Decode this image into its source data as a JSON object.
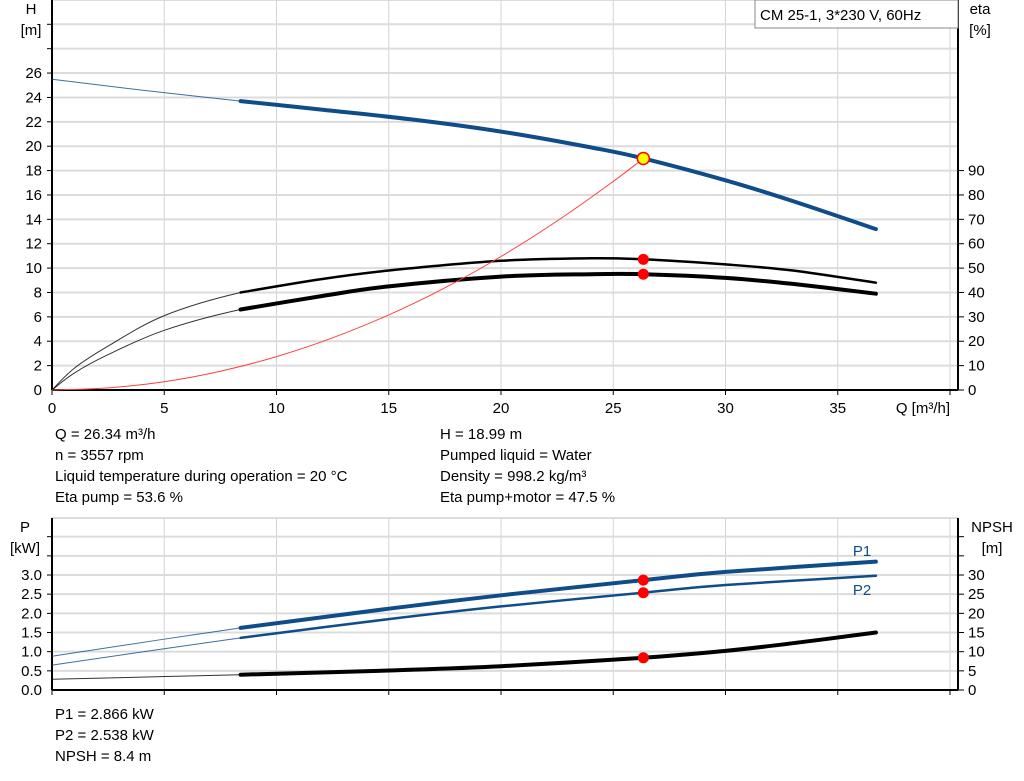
{
  "chart_data": [
    {
      "type": "line",
      "title": "CM 25-1, 3*230 V, 60Hz",
      "xlabel": "Q [m³/h]",
      "ylabel": "H",
      "ylabel_unit": "[m]",
      "y2label": "eta",
      "y2label_unit": "[%]",
      "xlim": [
        0,
        40
      ],
      "ylim": [
        0,
        32
      ],
      "y2lim": [
        0,
        160
      ],
      "grid": true,
      "x_ticks": [
        "0",
        "5",
        "10",
        "15",
        "20",
        "25",
        "30",
        "35"
      ],
      "y_ticks": [
        "0",
        "2",
        "4",
        "6",
        "8",
        "10",
        "12",
        "14",
        "16",
        "18",
        "20",
        "22",
        "24",
        "26"
      ],
      "y2_ticks": [
        "0",
        "10",
        "20",
        "30",
        "40",
        "50",
        "60",
        "70",
        "80",
        "90"
      ],
      "series": [
        {
          "key": "H",
          "axis": "left",
          "color": "#0f4c8a",
          "thin_until": 8.4,
          "x": [
            0,
            4,
            8.4,
            12,
            16,
            20,
            24,
            26.34,
            30,
            33,
            36.7
          ],
          "y": [
            25.5,
            24.6,
            23.7,
            23.0,
            22.2,
            21.2,
            19.9,
            19.0,
            17.2,
            15.5,
            13.2
          ]
        },
        {
          "key": "eta_pump",
          "axis": "right",
          "color": "#000000",
          "thin_until": 8.4,
          "x": [
            0,
            1,
            2.5,
            5,
            8.4,
            12,
            15,
            20,
            24,
            26.34,
            30,
            33,
            36.7
          ],
          "y": [
            0,
            9,
            18,
            30.5,
            40,
            45.5,
            49,
            53,
            54,
            53.6,
            51.5,
            49,
            44
          ]
        },
        {
          "key": "eta_pump_motor",
          "axis": "right",
          "color": "#000000",
          "thin_until": 8.4,
          "x": [
            0,
            1,
            2.5,
            5,
            8.4,
            12,
            15,
            20,
            24,
            26.34,
            30,
            33,
            36.7
          ],
          "y": [
            0,
            7,
            14.5,
            24.5,
            33,
            38.5,
            42.5,
            46.5,
            47.5,
            47.5,
            46,
            43.5,
            39.5
          ]
        },
        {
          "key": "system_curve",
          "axis": "left",
          "color": "#ff4040",
          "x": [
            0,
            2.5,
            5,
            7.5,
            10,
            12.5,
            15,
            17.5,
            20,
            22.5,
            25,
            26.34
          ],
          "y": [
            0,
            0.17,
            0.68,
            1.54,
            2.74,
            4.28,
            6.16,
            8.38,
            10.95,
            13.86,
            17.11,
            18.99
          ]
        }
      ],
      "duty_points": [
        {
          "key": "H",
          "axis": "left",
          "x": 26.34,
          "y": 18.99,
          "fill": "#ffff00",
          "stroke": "#ff0000"
        },
        {
          "key": "eta_pump",
          "axis": "right",
          "x": 26.34,
          "y": 53.6,
          "fill": "#ff0000"
        },
        {
          "key": "eta_pump_motor",
          "axis": "right",
          "x": 26.34,
          "y": 47.5,
          "fill": "#ff0000"
        }
      ]
    },
    {
      "type": "line",
      "ylabel": "P",
      "ylabel_unit": "[kW]",
      "y2label": "NPSH",
      "y2label_unit": "[m]",
      "xlim": [
        0,
        40
      ],
      "ylim": [
        0,
        4.5
      ],
      "y2lim": [
        0,
        45
      ],
      "grid": true,
      "y_ticks": [
        "0.0",
        "0.5",
        "1.0",
        "1.5",
        "2.0",
        "2.5",
        "3.0"
      ],
      "y2_ticks": [
        "0",
        "5",
        "10",
        "15",
        "20",
        "25",
        "30"
      ],
      "series": [
        {
          "key": "P1",
          "name": "P1",
          "axis": "left",
          "color": "#0f4c8a",
          "thin_until": 8.4,
          "heavy": true,
          "x": [
            0,
            8.4,
            15,
            20,
            26.34,
            30,
            36.7
          ],
          "y": [
            0.88,
            1.62,
            2.12,
            2.47,
            2.866,
            3.08,
            3.35
          ]
        },
        {
          "key": "P2",
          "name": "P2",
          "axis": "left",
          "color": "#0f4c8a",
          "thin_until": 8.4,
          "x": [
            0,
            8.4,
            15,
            20,
            26.34,
            30,
            36.7
          ],
          "y": [
            0.65,
            1.36,
            1.85,
            2.18,
            2.538,
            2.74,
            2.98
          ]
        },
        {
          "key": "NPSH",
          "axis": "right",
          "color": "#000000",
          "thin_until": 8.4,
          "heavy": true,
          "x": [
            0,
            8.4,
            15,
            20,
            26.34,
            30,
            33,
            36.7
          ],
          "y": [
            2.8,
            4.0,
            5.1,
            6.2,
            8.4,
            10.2,
            12.2,
            15.0
          ]
        }
      ],
      "duty_points": [
        {
          "key": "P1",
          "axis": "left",
          "x": 26.34,
          "y": 2.866,
          "fill": "#ff0000"
        },
        {
          "key": "P2",
          "axis": "left",
          "x": 26.34,
          "y": 2.538,
          "fill": "#ff0000"
        },
        {
          "key": "NPSH",
          "axis": "right",
          "x": 26.34,
          "y": 8.4,
          "fill": "#ff0000"
        }
      ]
    }
  ],
  "info": {
    "left": [
      "Q = 26.34 m³/h",
      "n = 3557 rpm",
      "Liquid temperature during operation = 20 °C",
      "Eta pump = 53.6 %"
    ],
    "right": [
      "H = 18.99 m",
      "Pumped liquid = Water",
      "Density = 998.2 kg/m³",
      "Eta pump+motor = 47.5 %"
    ],
    "bottom": [
      "P1 = 2.866 kW",
      "P2 = 2.538 kW",
      "NPSH = 8.4 m"
    ]
  }
}
